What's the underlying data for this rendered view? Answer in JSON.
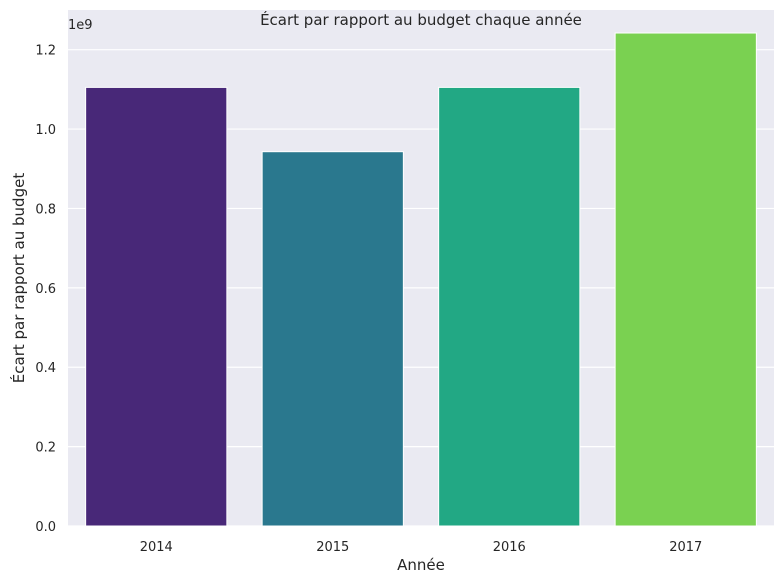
{
  "chart_data": {
    "type": "bar",
    "title": "Écart par rapport au budget chaque année",
    "xlabel": "Année",
    "ylabel": "Écart par rapport au budget",
    "y_offset_label": "1e9",
    "categories": [
      "2014",
      "2015",
      "2016",
      "2017"
    ],
    "values": [
      1.105,
      0.943,
      1.105,
      1.242
    ],
    "value_multiplier": 1000000000,
    "ylim": [
      0,
      1.3
    ],
    "yticks": [
      0.0,
      0.2,
      0.4,
      0.6,
      0.8,
      1.0,
      1.2
    ],
    "ytick_labels": [
      "0.0",
      "0.2",
      "0.4",
      "0.6",
      "0.8",
      "1.0",
      "1.2"
    ],
    "colors": [
      "#482878",
      "#2a788e",
      "#22a884",
      "#7ad151"
    ],
    "grid": true,
    "background": "#eaeaf2",
    "gridline_color": "#ffffff"
  }
}
